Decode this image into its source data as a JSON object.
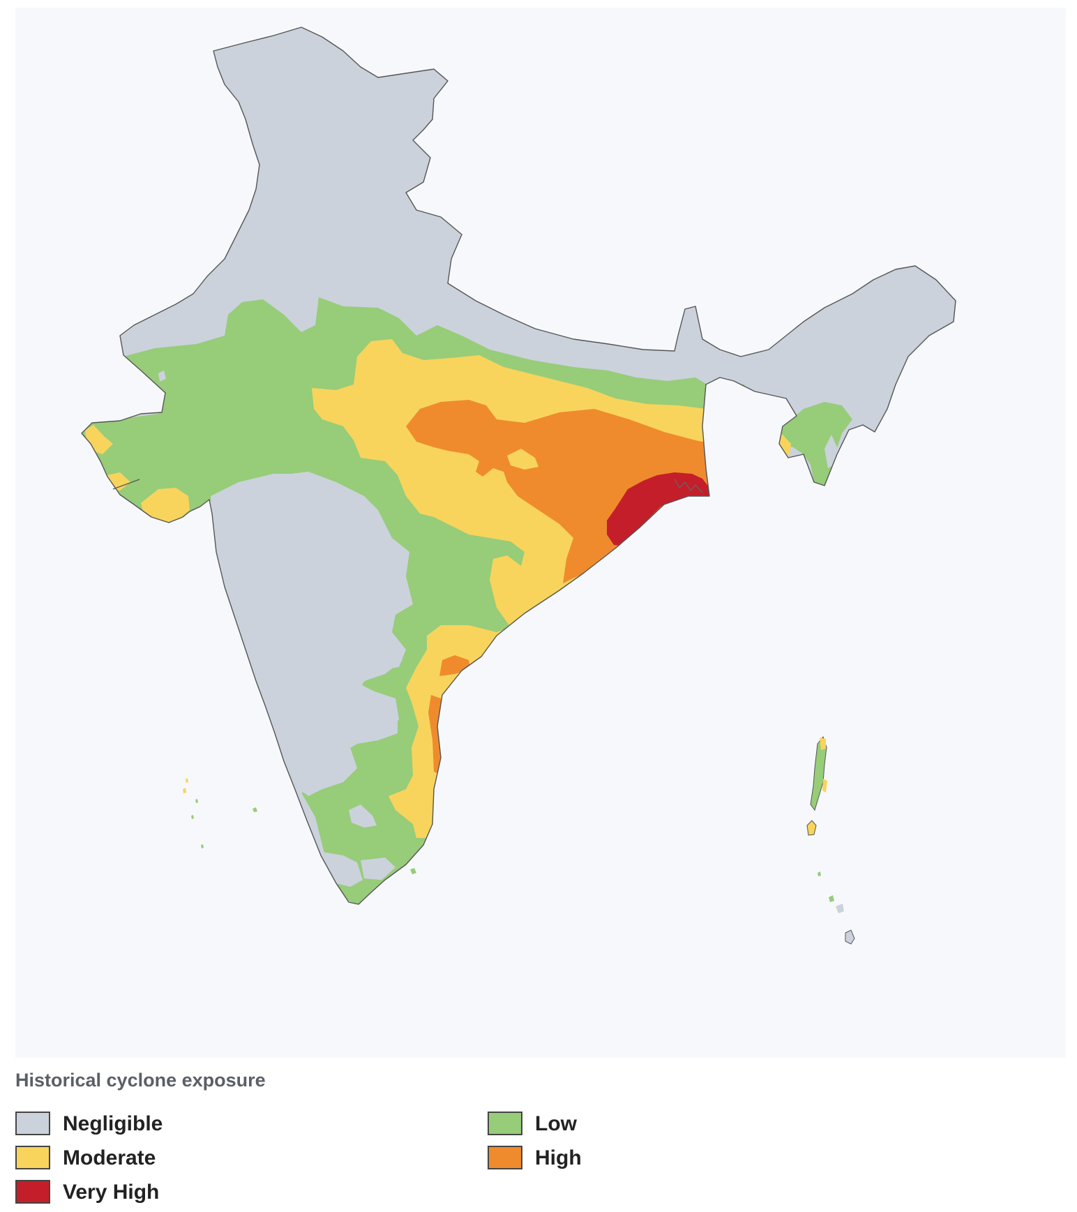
{
  "legend": {
    "title": "Historical cyclone exposure",
    "items": [
      {
        "label": "Negligible",
        "color": "#cbd2dc"
      },
      {
        "label": "Low",
        "color": "#97cc79"
      },
      {
        "label": "Moderate",
        "color": "#f8d45c"
      },
      {
        "label": "High",
        "color": "#ef8b2d"
      },
      {
        "label": "Very High",
        "color": "#c41e2a"
      }
    ]
  },
  "colors": {
    "background": "#f7f8fb",
    "outline": "#555555"
  }
}
